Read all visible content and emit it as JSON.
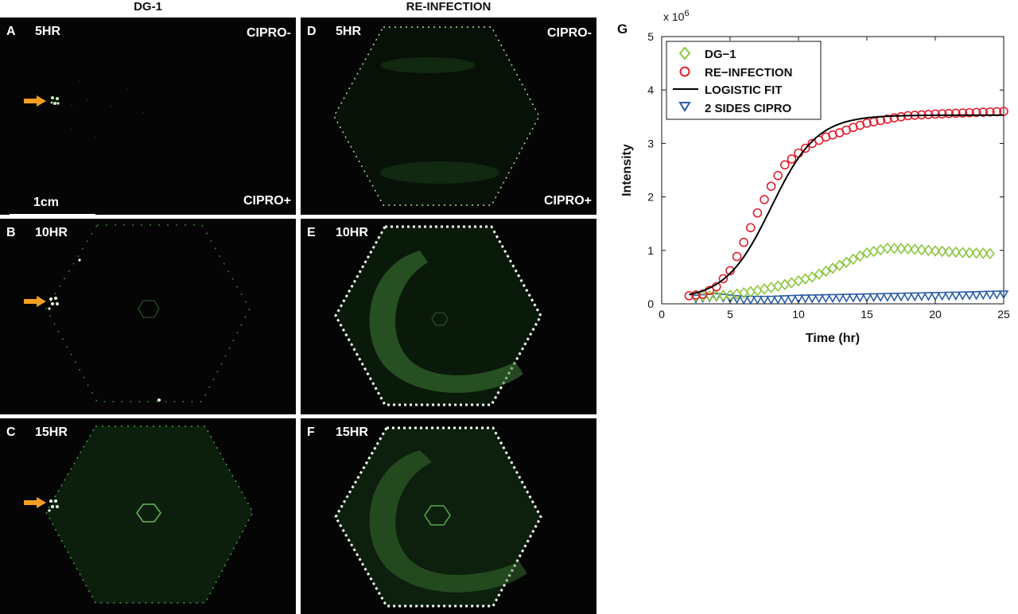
{
  "columns": {
    "left": "DG-1",
    "right": "RE-INFECTION"
  },
  "panels": [
    {
      "letter": "A",
      "time": "5HR",
      "cipro_minus": "CIPRO-",
      "cipro_plus": "CIPRO+",
      "scale_bar": "1cm",
      "arrow": true
    },
    {
      "letter": "B",
      "time": "10HR",
      "arrow": true
    },
    {
      "letter": "C",
      "time": "15HR",
      "arrow": true
    },
    {
      "letter": "D",
      "time": "5HR",
      "cipro_minus": "CIPRO-",
      "cipro_plus": "CIPRO+"
    },
    {
      "letter": "E",
      "time": "10HR"
    },
    {
      "letter": "F",
      "time": "15HR"
    }
  ],
  "colors": {
    "arrow": "#f5a023",
    "dg1": "#8cc63f",
    "reinfection": "#e2202f",
    "logistic": "#000000",
    "two_sides": "#2b5ca8",
    "glow": "#9be38a"
  },
  "chart_data": {
    "panel_letter": "G",
    "type": "scatter",
    "xlabel": "Time (hr)",
    "ylabel": "Intensity",
    "y_multiplier": "x 10",
    "y_multiplier_exp": "6",
    "xlim": [
      0,
      25
    ],
    "ylim": [
      0,
      5
    ],
    "xticks": [
      "0",
      "5",
      "10",
      "15",
      "20",
      "25"
    ],
    "yticks": [
      "0",
      "1",
      "2",
      "3",
      "4",
      "5"
    ],
    "legend_position": "top-left",
    "series": [
      {
        "name": "DG−1",
        "marker": "diamond",
        "x_start": 2.5,
        "x_end": 24,
        "step": 0.5,
        "points": [
          [
            2.5,
            0.14
          ],
          [
            5,
            0.16
          ],
          [
            7,
            0.25
          ],
          [
            9,
            0.36
          ],
          [
            11,
            0.5
          ],
          [
            13,
            0.72
          ],
          [
            15,
            0.95
          ],
          [
            16.5,
            1.04
          ],
          [
            18,
            1.03
          ],
          [
            20,
            0.99
          ],
          [
            22,
            0.96
          ],
          [
            24,
            0.94
          ]
        ]
      },
      {
        "name": "RE−INFECTION",
        "marker": "circle",
        "x_start": 2,
        "x_end": 25,
        "step": 0.5,
        "points": [
          [
            2,
            0.15
          ],
          [
            3,
            0.18
          ],
          [
            4,
            0.32
          ],
          [
            5,
            0.62
          ],
          [
            6,
            1.15
          ],
          [
            7,
            1.7
          ],
          [
            8,
            2.2
          ],
          [
            9,
            2.6
          ],
          [
            10,
            2.82
          ],
          [
            11,
            3.0
          ],
          [
            12,
            3.12
          ],
          [
            13,
            3.2
          ],
          [
            14,
            3.3
          ],
          [
            15,
            3.38
          ],
          [
            16,
            3.43
          ],
          [
            17,
            3.48
          ],
          [
            18,
            3.52
          ],
          [
            20,
            3.55
          ],
          [
            22,
            3.57
          ],
          [
            25,
            3.6
          ]
        ]
      },
      {
        "name": "LOGISTIC FIT",
        "marker": "line",
        "logistic": {
          "baseline": 0.08,
          "amplitude": 3.45,
          "k": 0.6,
          "x0": 8.0,
          "x_start": 2,
          "x_end": 25
        }
      },
      {
        "name": "2 SIDES CIPRO",
        "marker": "triangle-down",
        "x_start": 2.5,
        "x_end": 25,
        "step": 0.5,
        "points": [
          [
            2.5,
            0.1
          ],
          [
            4,
            0.13
          ],
          [
            6,
            0.08
          ],
          [
            8,
            0.08
          ],
          [
            10,
            0.1
          ],
          [
            14,
            0.12
          ],
          [
            18,
            0.14
          ],
          [
            22,
            0.16
          ],
          [
            25,
            0.18
          ]
        ]
      }
    ]
  }
}
